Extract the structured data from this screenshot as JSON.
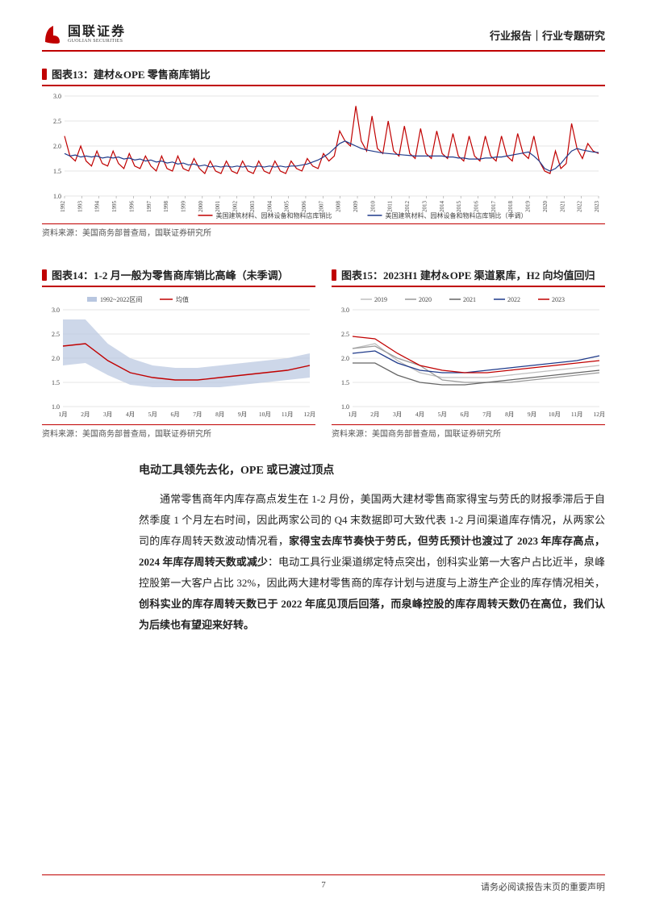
{
  "header": {
    "logo_cn": "国联证券",
    "logo_en": "GUOLIAN SECURITIES",
    "right_text": "行业报告｜行业专题研究"
  },
  "fig13": {
    "title": "图表13：建材&OPE 零售商库销比",
    "source": "资料来源：美国商务部普查局，国联证券研究所",
    "legend": [
      "美国建筑材料、园林设备和物料店库销比",
      "美国建筑材料、园林设备和物料店库销比（季调）"
    ],
    "legend_colors": [
      "#c00000",
      "#1f3a8a"
    ],
    "ylim": [
      1.0,
      3.0
    ],
    "ytick_step": 0.5,
    "xlabels": [
      "1992",
      "1993",
      "1994",
      "1995",
      "1996",
      "1997",
      "1998",
      "1999",
      "2000",
      "2001",
      "2002",
      "2003",
      "2004",
      "2005",
      "2006",
      "2007",
      "2008",
      "2009",
      "2010",
      "2011",
      "2012",
      "2013",
      "2014",
      "2015",
      "2016",
      "2017",
      "2018",
      "2019",
      "2020",
      "2021",
      "2022",
      "2023"
    ],
    "background_color": "#ffffff",
    "grid_color": "#cccccc",
    "line_width": 1.2,
    "red_values": [
      2.2,
      1.8,
      1.7,
      2.0,
      1.7,
      1.6,
      1.9,
      1.65,
      1.6,
      1.9,
      1.65,
      1.55,
      1.85,
      1.6,
      1.55,
      1.8,
      1.6,
      1.5,
      1.8,
      1.55,
      1.5,
      1.8,
      1.55,
      1.5,
      1.75,
      1.55,
      1.45,
      1.7,
      1.5,
      1.45,
      1.7,
      1.5,
      1.45,
      1.7,
      1.5,
      1.45,
      1.7,
      1.5,
      1.45,
      1.7,
      1.5,
      1.45,
      1.7,
      1.55,
      1.5,
      1.75,
      1.6,
      1.55,
      1.85,
      1.7,
      1.8,
      2.3,
      2.1,
      2.0,
      2.8,
      2.1,
      1.9,
      2.6,
      1.95,
      1.85,
      2.5,
      1.9,
      1.8,
      2.4,
      1.85,
      1.75,
      2.35,
      1.85,
      1.75,
      2.3,
      1.85,
      1.75,
      2.25,
      1.8,
      1.7,
      2.2,
      1.8,
      1.7,
      2.2,
      1.8,
      1.7,
      2.2,
      1.8,
      1.7,
      2.25,
      1.85,
      1.75,
      2.2,
      1.7,
      1.5,
      1.45,
      1.9,
      1.55,
      1.65,
      2.45,
      1.95,
      1.75,
      2.05,
      1.9,
      1.85
    ],
    "blue_values": [
      1.85,
      1.8,
      1.82,
      1.78,
      1.8,
      1.78,
      1.8,
      1.76,
      1.78,
      1.76,
      1.78,
      1.74,
      1.76,
      1.72,
      1.74,
      1.7,
      1.72,
      1.68,
      1.7,
      1.66,
      1.68,
      1.64,
      1.66,
      1.62,
      1.64,
      1.6,
      1.62,
      1.58,
      1.6,
      1.58,
      1.6,
      1.58,
      1.6,
      1.58,
      1.6,
      1.58,
      1.6,
      1.58,
      1.6,
      1.58,
      1.6,
      1.58,
      1.6,
      1.6,
      1.62,
      1.64,
      1.68,
      1.72,
      1.78,
      1.85,
      1.95,
      2.05,
      2.1,
      2.05,
      2.0,
      1.95,
      1.92,
      1.9,
      1.88,
      1.86,
      1.85,
      1.84,
      1.83,
      1.82,
      1.81,
      1.8,
      1.8,
      1.8,
      1.8,
      1.8,
      1.8,
      1.78,
      1.78,
      1.76,
      1.76,
      1.74,
      1.74,
      1.74,
      1.76,
      1.76,
      1.78,
      1.78,
      1.8,
      1.82,
      1.84,
      1.86,
      1.88,
      1.8,
      1.7,
      1.55,
      1.5,
      1.55,
      1.65,
      1.78,
      1.9,
      1.95,
      1.92,
      1.9,
      1.88,
      1.87
    ]
  },
  "fig14": {
    "title": "图表14：1-2 月一般为零售商库销比高峰（未季调）",
    "source": "资料来源：美国商务部普查局，国联证券研究所",
    "legend": [
      "1992~2022区间",
      "均值"
    ],
    "legend_colors": [
      "#b8c6e0",
      "#c00000"
    ],
    "ylim": [
      1.0,
      3.0
    ],
    "ytick_step": 0.5,
    "xlabels": [
      "1月",
      "2月",
      "3月",
      "4月",
      "5月",
      "6月",
      "7月",
      "8月",
      "9月",
      "10月",
      "11月",
      "12月"
    ],
    "background_color": "#ffffff",
    "grid_color": "#cccccc",
    "band_upper": [
      2.8,
      2.8,
      2.3,
      2.0,
      1.85,
      1.8,
      1.8,
      1.85,
      1.9,
      1.95,
      2.0,
      2.1
    ],
    "band_lower": [
      1.85,
      1.9,
      1.65,
      1.45,
      1.4,
      1.4,
      1.4,
      1.4,
      1.45,
      1.5,
      1.55,
      1.6
    ],
    "mean_values": [
      2.25,
      2.3,
      1.95,
      1.7,
      1.6,
      1.55,
      1.55,
      1.6,
      1.65,
      1.7,
      1.75,
      1.85
    ]
  },
  "fig15": {
    "title": "图表15：2023H1 建材&OPE 渠道累库，H2 向均值回归",
    "source": "资料来源：美国商务部普查局，国联证券研究所",
    "legend": [
      "2019",
      "2020",
      "2021",
      "2022",
      "2023"
    ],
    "legend_colors": [
      "#bfbfbf",
      "#999999",
      "#666666",
      "#1f3a8a",
      "#c00000"
    ],
    "ylim": [
      1.0,
      3.0
    ],
    "ytick_step": 0.5,
    "xlabels": [
      "1月",
      "2月",
      "3月",
      "4月",
      "5月",
      "6月",
      "7月",
      "8月",
      "9月",
      "10月",
      "11月",
      "12月"
    ],
    "background_color": "#ffffff",
    "grid_color": "#cccccc",
    "series": {
      "2019": [
        2.2,
        2.3,
        1.95,
        1.7,
        1.6,
        1.6,
        1.6,
        1.65,
        1.7,
        1.75,
        1.8,
        1.85
      ],
      "2020": [
        2.2,
        2.25,
        2.0,
        1.85,
        1.55,
        1.5,
        1.5,
        1.5,
        1.55,
        1.6,
        1.65,
        1.7
      ],
      "2021": [
        1.9,
        1.9,
        1.65,
        1.5,
        1.45,
        1.45,
        1.5,
        1.55,
        1.6,
        1.65,
        1.7,
        1.75
      ],
      "2022": [
        2.1,
        2.15,
        1.9,
        1.75,
        1.7,
        1.7,
        1.75,
        1.8,
        1.85,
        1.9,
        1.95,
        2.05
      ],
      "2023": [
        2.45,
        2.4,
        2.1,
        1.85,
        1.75,
        1.7,
        1.7,
        1.75,
        1.8,
        1.85,
        1.9,
        1.95
      ]
    }
  },
  "section_title": "电动工具领先去化，OPE 或已渡过顶点",
  "body": "通常零售商年内库存高点发生在 1-2 月份，美国两大建材零售商家得宝与劳氏的财报季滞后于自然季度 1 个月左右时间，因此两家公司的 Q4 末数据即可大致代表 1-2 月间渠道库存情况，从两家公司的库存周转天数波动情况看，<b>家得宝去库节奏快于劳氏，但劳氏预计也渡过了 2023 年库存高点，2024 年库存周转天数或减少</b>：电动工具行业渠道绑定特点突出，创科实业第一大客户占比近半，泉峰控股第一大客户占比 32%，因此两大建材零售商的库存计划与进度与上游生产企业的库存情况相关，<b>创科实业的库存周转天数已于 2022 年底见顶后回落，而泉峰控股的库存周转天数仍在高位，我们认为后续也有望迎来好转。</b>",
  "footer": {
    "page": "7",
    "disclaimer": "请务必阅读报告末页的重要声明"
  }
}
